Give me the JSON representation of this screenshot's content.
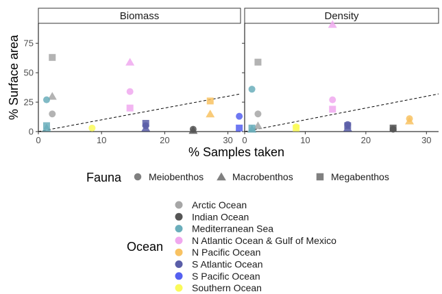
{
  "chart_data": {
    "type": "scatter",
    "title": "",
    "xlabel": "% Samples taken",
    "ylabel": "% Surface area",
    "xlim": [
      0,
      32
    ],
    "ylim": [
      0,
      92
    ],
    "xticks": [
      0,
      10,
      20,
      30
    ],
    "yticks": [
      0,
      25,
      50,
      75
    ],
    "grid": false,
    "reference_line": {
      "style": "dashed",
      "slope": 1,
      "intercept": 0
    },
    "facets": [
      "Biomass",
      "Density"
    ],
    "fauna_legend": {
      "title": "Fauna",
      "placement": "bottom",
      "entries": [
        {
          "name": "Meiobenthos",
          "shape": "circle"
        },
        {
          "name": "Macrobenthos",
          "shape": "triangle"
        },
        {
          "name": "Megabenthos",
          "shape": "square"
        }
      ]
    },
    "ocean_legend": {
      "title": "Ocean",
      "placement": "bottom",
      "entries": [
        {
          "name": "Arctic Ocean",
          "color": "#a6a6a6"
        },
        {
          "name": "Indian Ocean",
          "color": "#555555"
        },
        {
          "name": "Mediterranean Sea",
          "color": "#6aaebb"
        },
        {
          "name": "N Atlantic Ocean & Gulf of Mexico",
          "color": "#f0a8ee"
        },
        {
          "name": "N Pacific Ocean",
          "color": "#f8c262"
        },
        {
          "name": "S Atlantic Ocean",
          "color": "#5a5ea8"
        },
        {
          "name": "S Pacific Ocean",
          "color": "#5560f0"
        },
        {
          "name": "Southern Ocean",
          "color": "#fafa5a"
        }
      ]
    },
    "points": {
      "Biomass": [
        {
          "ocean": "Arctic Ocean",
          "fauna": "Megabenthos",
          "x": 2.2,
          "y": 63
        },
        {
          "ocean": "Arctic Ocean",
          "fauna": "Macrobenthos",
          "x": 2.2,
          "y": 30
        },
        {
          "ocean": "Arctic Ocean",
          "fauna": "Meiobenthos",
          "x": 2.2,
          "y": 15
        },
        {
          "ocean": "Mediterranean Sea",
          "fauna": "Meiobenthos",
          "x": 1.3,
          "y": 27
        },
        {
          "ocean": "Mediterranean Sea",
          "fauna": "Megabenthos",
          "x": 1.3,
          "y": 5
        },
        {
          "ocean": "Mediterranean Sea",
          "fauna": "Macrobenthos",
          "x": 1.3,
          "y": 3
        },
        {
          "ocean": "Southern Ocean",
          "fauna": "Meiobenthos",
          "x": 8.5,
          "y": 3
        },
        {
          "ocean": "N Atlantic Ocean & Gulf of Mexico",
          "fauna": "Macrobenthos",
          "x": 14.5,
          "y": 59
        },
        {
          "ocean": "N Atlantic Ocean & Gulf of Mexico",
          "fauna": "Meiobenthos",
          "x": 14.5,
          "y": 34
        },
        {
          "ocean": "N Atlantic Ocean & Gulf of Mexico",
          "fauna": "Megabenthos",
          "x": 14.5,
          "y": 20
        },
        {
          "ocean": "S Atlantic Ocean",
          "fauna": "Megabenthos",
          "x": 17,
          "y": 7
        },
        {
          "ocean": "S Atlantic Ocean",
          "fauna": "Meiobenthos",
          "x": 17,
          "y": 5
        },
        {
          "ocean": "S Atlantic Ocean",
          "fauna": "Macrobenthos",
          "x": 17,
          "y": 3
        },
        {
          "ocean": "Indian Ocean",
          "fauna": "Meiobenthos",
          "x": 24.5,
          "y": 2
        },
        {
          "ocean": "Indian Ocean",
          "fauna": "Macrobenthos",
          "x": 24.5,
          "y": 1
        },
        {
          "ocean": "N Pacific Ocean",
          "fauna": "Megabenthos",
          "x": 27.2,
          "y": 26
        },
        {
          "ocean": "N Pacific Ocean",
          "fauna": "Macrobenthos",
          "x": 27.2,
          "y": 15
        },
        {
          "ocean": "S Pacific Ocean",
          "fauna": "Meiobenthos",
          "x": 31.8,
          "y": 13
        },
        {
          "ocean": "S Pacific Ocean",
          "fauna": "Megabenthos",
          "x": 31.8,
          "y": 3
        }
      ],
      "Density": [
        {
          "ocean": "Arctic Ocean",
          "fauna": "Megabenthos",
          "x": 2.2,
          "y": 59
        },
        {
          "ocean": "Arctic Ocean",
          "fauna": "Meiobenthos",
          "x": 2.2,
          "y": 15
        },
        {
          "ocean": "Arctic Ocean",
          "fauna": "Macrobenthos",
          "x": 2.2,
          "y": 5
        },
        {
          "ocean": "Mediterranean Sea",
          "fauna": "Meiobenthos",
          "x": 1.2,
          "y": 36
        },
        {
          "ocean": "Mediterranean Sea",
          "fauna": "Megabenthos",
          "x": 1.2,
          "y": 3
        },
        {
          "ocean": "Mediterranean Sea",
          "fauna": "Macrobenthos",
          "x": 1.2,
          "y": 2
        },
        {
          "ocean": "Southern Ocean",
          "fauna": "Meiobenthos",
          "x": 8.5,
          "y": 4
        },
        {
          "ocean": "Southern Ocean",
          "fauna": "Megabenthos",
          "x": 8.5,
          "y": 3
        },
        {
          "ocean": "N Atlantic Ocean & Gulf of Mexico",
          "fauna": "Macrobenthos",
          "x": 14.5,
          "y": 91
        },
        {
          "ocean": "N Atlantic Ocean & Gulf of Mexico",
          "fauna": "Meiobenthos",
          "x": 14.5,
          "y": 27
        },
        {
          "ocean": "N Atlantic Ocean & Gulf of Mexico",
          "fauna": "Megabenthos",
          "x": 14.5,
          "y": 19
        },
        {
          "ocean": "S Atlantic Ocean",
          "fauna": "Meiobenthos",
          "x": 17,
          "y": 6
        },
        {
          "ocean": "S Atlantic Ocean",
          "fauna": "Megabenthos",
          "x": 17,
          "y": 5
        },
        {
          "ocean": "S Atlantic Ocean",
          "fauna": "Macrobenthos",
          "x": 17,
          "y": 3
        },
        {
          "ocean": "Indian Ocean",
          "fauna": "Megabenthos",
          "x": 24.5,
          "y": 3
        },
        {
          "ocean": "Indian Ocean",
          "fauna": "Meiobenthos",
          "x": 24.5,
          "y": 2
        },
        {
          "ocean": "N Pacific Ocean",
          "fauna": "Meiobenthos",
          "x": 27.2,
          "y": 11
        },
        {
          "ocean": "N Pacific Ocean",
          "fauna": "Macrobenthos",
          "x": 27.2,
          "y": 9
        }
      ]
    }
  }
}
